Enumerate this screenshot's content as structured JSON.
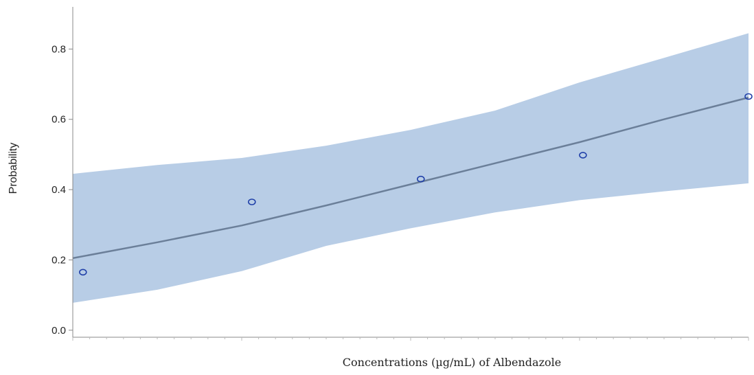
{
  "chart_data": {
    "type": "line",
    "title": "",
    "xlabel": "Concentrations (µg/mL) of Albendazole",
    "ylabel": "Probability",
    "xlim": [
      0,
      4
    ],
    "ylim": [
      -0.02,
      0.92
    ],
    "yticks": [
      0.0,
      0.2,
      0.4,
      0.6,
      0.8
    ],
    "ytick_labels": [
      "0.0",
      "0.2",
      "0.4",
      "0.6",
      "0.8"
    ],
    "grid": false,
    "legend": "none",
    "observed_points": {
      "x": [
        0.06,
        1.06,
        2.06,
        3.02,
        4.0
      ],
      "y": [
        0.165,
        0.365,
        0.43,
        0.498,
        0.665
      ]
    },
    "fitted_line": {
      "x": [
        0,
        0.5,
        1,
        1.5,
        2,
        2.5,
        3,
        3.5,
        4
      ],
      "y": [
        0.205,
        0.25,
        0.298,
        0.355,
        0.415,
        0.475,
        0.535,
        0.6,
        0.662
      ]
    },
    "confidence_band": {
      "x": [
        0,
        0.5,
        1,
        1.5,
        2,
        2.5,
        3,
        3.5,
        4
      ],
      "lower": [
        0.078,
        0.115,
        0.168,
        0.24,
        0.29,
        0.335,
        0.37,
        0.395,
        0.418
      ],
      "upper": [
        0.445,
        0.47,
        0.49,
        0.525,
        0.57,
        0.625,
        0.705,
        0.775,
        0.845
      ]
    },
    "colors": {
      "band": "#b8cde6",
      "line": "#6b7f99",
      "point": "#1f3fa8",
      "axis": "#888888"
    }
  }
}
